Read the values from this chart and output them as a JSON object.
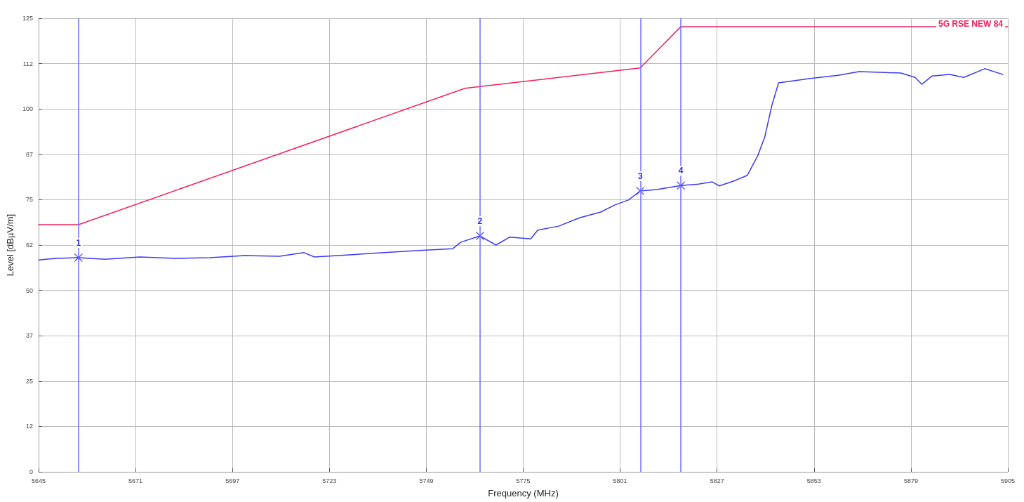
{
  "chart_data": {
    "type": "line",
    "xlabel": "Frequency (MHz)",
    "ylabel": "Level [dBµV/m]",
    "xlim": [
      5645,
      5905
    ],
    "xticks": [
      5645,
      5671,
      5697,
      5723,
      5749,
      5775,
      5801,
      5827,
      5853,
      5879,
      5905
    ],
    "ylim": [
      0,
      125
    ],
    "yticks": [
      0,
      {
        "value": 12.5,
        "label": "12"
      },
      25,
      {
        "value": 37.5,
        "label": "37"
      },
      50,
      {
        "value": 62.5,
        "label": "62"
      },
      75,
      {
        "value": 87.5,
        "label": "87"
      },
      100,
      {
        "value": 112.5,
        "label": "112"
      },
      125
    ],
    "grid": true,
    "legend": "top right",
    "marker": "none",
    "line_style": "solid",
    "series": [
      {
        "name": "5G RSE NEW 84",
        "color": "#f0205a",
        "x": [
          5645,
          5655.7,
          5759.4,
          5806.4,
          5817.3,
          5905
        ],
        "values": [
          68.1,
          68.1,
          105.7,
          111.3,
          122.7,
          122.7
        ]
      },
      {
        "color": "#3b3bf0",
        "x": [
          5645,
          5649.7,
          5655.7,
          5662.8,
          5672.2,
          5681.5,
          5690.9,
          5700.3,
          5709.6,
          5716.2,
          5719.0,
          5728.3,
          5737.7,
          5747.1,
          5756.1,
          5758.3,
          5763.4,
          5767.7,
          5771.4,
          5777.0,
          5778.9,
          5784.5,
          5790.1,
          5795.8,
          5799.5,
          5803.2,
          5806.4,
          5810.8,
          5817.3,
          5822.0,
          5825.7,
          5827.6,
          5831.4,
          5835.1,
          5837.9,
          5839.8,
          5841.7,
          5843.5,
          5846.3,
          5852.0,
          5859.5,
          5865.1,
          5870.7,
          5876.3,
          5880.1,
          5881.9,
          5884.7,
          5889.4,
          5893.2,
          5898.8,
          5903.7
        ],
        "values": [
          58.4,
          58.8,
          59.0,
          58.6,
          59.2,
          58.8,
          59.0,
          59.6,
          59.4,
          60.4,
          59.2,
          59.8,
          60.4,
          61.0,
          61.5,
          63.3,
          65.0,
          62.5,
          64.7,
          64.2,
          66.6,
          67.7,
          70.0,
          71.6,
          73.5,
          74.9,
          77.4,
          77.8,
          78.9,
          79.3,
          79.9,
          78.8,
          80.1,
          81.7,
          87.1,
          92.3,
          101.0,
          107.2,
          107.6,
          108.4,
          109.3,
          110.3,
          110.1,
          109.9,
          108.7,
          106.8,
          109.1,
          109.5,
          108.7,
          111.1,
          109.5
        ]
      },
      {
        "type": "scatter",
        "marker": "cross",
        "color": "#3b3bf0",
        "x": [
          5655.7,
          5763.4,
          5806.4,
          5817.3
        ],
        "values": [
          59.0,
          65.0,
          77.4,
          78.9
        ]
      }
    ],
    "annotations": [
      {
        "text": "1",
        "x": 5655.7,
        "y": 59.0
      },
      {
        "text": "2",
        "x": 5763.4,
        "y": 65.0
      },
      {
        "text": "3",
        "x": 5806.4,
        "y": 77.4
      },
      {
        "text": "4",
        "x": 5817.3,
        "y": 78.9
      }
    ],
    "ref_lines": [
      {
        "axis": "x",
        "value": 5655.7,
        "color": "#6b6bff"
      },
      {
        "axis": "x",
        "value": 5763.4,
        "color": "#6b6bff"
      },
      {
        "axis": "x",
        "value": 5806.4,
        "color": "#6b6bff"
      },
      {
        "axis": "x",
        "value": 5817.3,
        "color": "#6b6bff"
      }
    ]
  }
}
